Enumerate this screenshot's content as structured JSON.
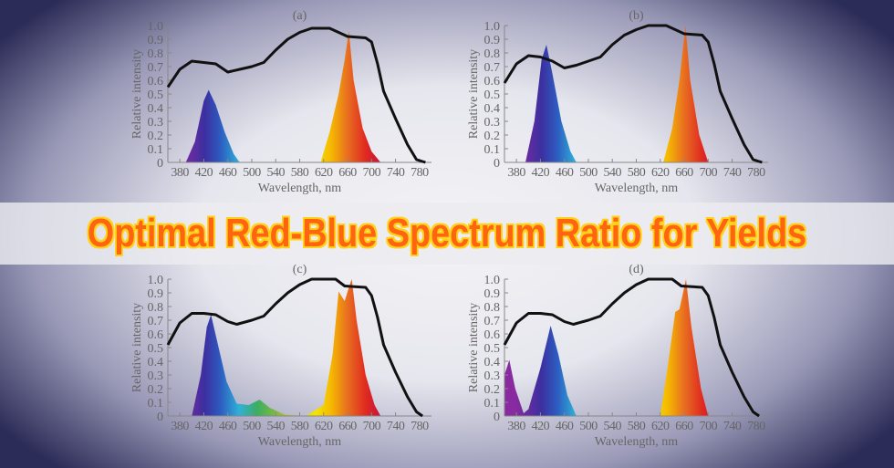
{
  "title": "Optimal Red-Blue Spectrum Ratio for Yields",
  "colors": {
    "title_fill": "#ff6410",
    "title_outline": "#ffd21a",
    "curve": "#111111"
  },
  "chart_data": [
    {
      "type": "area",
      "title": "(a)",
      "xlabel": "Wavelength, nm",
      "ylabel": "Relative intensity",
      "xlim": [
        360,
        800
      ],
      "ylim": [
        0,
        1.0
      ],
      "xticks": [
        380,
        420,
        460,
        500,
        540,
        580,
        620,
        660,
        700,
        740,
        780
      ],
      "yticks": [
        "0",
        "0.1",
        "0.2",
        "0.3",
        "0.4",
        "0.5",
        "0.6",
        "0.7",
        "0.8",
        "0.9",
        "1.0"
      ],
      "curve": [
        [
          360,
          0.55
        ],
        [
          380,
          0.68
        ],
        [
          400,
          0.74
        ],
        [
          420,
          0.73
        ],
        [
          440,
          0.72
        ],
        [
          460,
          0.66
        ],
        [
          480,
          0.68
        ],
        [
          500,
          0.7
        ],
        [
          520,
          0.73
        ],
        [
          540,
          0.82
        ],
        [
          560,
          0.9
        ],
        [
          580,
          0.95
        ],
        [
          600,
          0.98
        ],
        [
          630,
          0.98
        ],
        [
          645,
          0.95
        ],
        [
          660,
          0.92
        ],
        [
          690,
          0.91
        ],
        [
          700,
          0.88
        ],
        [
          710,
          0.72
        ],
        [
          720,
          0.52
        ],
        [
          740,
          0.32
        ],
        [
          760,
          0.13
        ],
        [
          775,
          0.02
        ],
        [
          790,
          0
        ]
      ],
      "spectrum": [
        [
          390,
          0
        ],
        [
          405,
          0.15
        ],
        [
          420,
          0.45
        ],
        [
          428,
          0.53
        ],
        [
          440,
          0.42
        ],
        [
          455,
          0.22
        ],
        [
          470,
          0.06
        ],
        [
          480,
          0
        ],
        [
          615,
          0
        ],
        [
          630,
          0.22
        ],
        [
          645,
          0.5
        ],
        [
          655,
          0.75
        ],
        [
          662,
          0.96
        ],
        [
          670,
          0.6
        ],
        [
          685,
          0.25
        ],
        [
          700,
          0.08
        ],
        [
          715,
          0
        ]
      ]
    },
    {
      "type": "area",
      "title": "(b)",
      "xlabel": "Wavelength, nm",
      "ylabel": "Relative intensity",
      "xlim": [
        360,
        800
      ],
      "ylim": [
        0,
        1.0
      ],
      "xticks": [
        380,
        420,
        460,
        500,
        540,
        580,
        620,
        660,
        700,
        740,
        780
      ],
      "yticks": [
        "0",
        "0.1",
        "0.2",
        "0.3",
        "0.4",
        "0.5",
        "0.6",
        "0.7",
        "0.8",
        "0.9",
        "1.0"
      ],
      "curve": [
        [
          360,
          0.58
        ],
        [
          380,
          0.72
        ],
        [
          400,
          0.78
        ],
        [
          420,
          0.77
        ],
        [
          440,
          0.74
        ],
        [
          460,
          0.69
        ],
        [
          480,
          0.71
        ],
        [
          500,
          0.74
        ],
        [
          520,
          0.77
        ],
        [
          540,
          0.86
        ],
        [
          560,
          0.93
        ],
        [
          580,
          0.97
        ],
        [
          600,
          1.0
        ],
        [
          630,
          1.0
        ],
        [
          645,
          0.97
        ],
        [
          660,
          0.94
        ],
        [
          690,
          0.93
        ],
        [
          700,
          0.88
        ],
        [
          710,
          0.72
        ],
        [
          720,
          0.52
        ],
        [
          740,
          0.32
        ],
        [
          760,
          0.13
        ],
        [
          775,
          0.02
        ],
        [
          790,
          0
        ]
      ],
      "spectrum": [
        [
          395,
          0
        ],
        [
          410,
          0.3
        ],
        [
          422,
          0.75
        ],
        [
          430,
          0.86
        ],
        [
          440,
          0.65
        ],
        [
          455,
          0.3
        ],
        [
          470,
          0.08
        ],
        [
          480,
          0
        ],
        [
          625,
          0
        ],
        [
          640,
          0.25
        ],
        [
          652,
          0.6
        ],
        [
          662,
          1.0
        ],
        [
          670,
          0.6
        ],
        [
          685,
          0.2
        ],
        [
          700,
          0
        ]
      ]
    },
    {
      "type": "area",
      "title": "(c)",
      "xlabel": "Wavelength, nm",
      "ylabel": "Relative intensity",
      "xlim": [
        360,
        800
      ],
      "ylim": [
        0,
        1.0
      ],
      "xticks": [
        380,
        420,
        460,
        500,
        540,
        580,
        620,
        660,
        700,
        740,
        780
      ],
      "yticks": [
        "0",
        "0.1",
        "0.2",
        "0.3",
        "0.4",
        "0.5",
        "0.6",
        "0.7",
        "0.8",
        "0.9",
        "1.0"
      ],
      "curve": [
        [
          360,
          0.52
        ],
        [
          380,
          0.68
        ],
        [
          400,
          0.75
        ],
        [
          420,
          0.75
        ],
        [
          440,
          0.74
        ],
        [
          460,
          0.69
        ],
        [
          475,
          0.67
        ],
        [
          500,
          0.7
        ],
        [
          520,
          0.73
        ],
        [
          540,
          0.82
        ],
        [
          560,
          0.9
        ],
        [
          580,
          0.96
        ],
        [
          600,
          1.0
        ],
        [
          640,
          1.0
        ],
        [
          655,
          0.95
        ],
        [
          690,
          0.94
        ],
        [
          700,
          0.88
        ],
        [
          710,
          0.72
        ],
        [
          720,
          0.52
        ],
        [
          740,
          0.32
        ],
        [
          760,
          0.14
        ],
        [
          775,
          0.03
        ],
        [
          785,
          0
        ]
      ],
      "spectrum": [
        [
          400,
          0
        ],
        [
          415,
          0.3
        ],
        [
          425,
          0.65
        ],
        [
          432,
          0.74
        ],
        [
          442,
          0.55
        ],
        [
          458,
          0.25
        ],
        [
          475,
          0.09
        ],
        [
          495,
          0.08
        ],
        [
          513,
          0.12
        ],
        [
          530,
          0.06
        ],
        [
          555,
          0.01
        ],
        [
          590,
          0
        ],
        [
          620,
          0.08
        ],
        [
          635,
          0.45
        ],
        [
          645,
          0.91
        ],
        [
          655,
          0.84
        ],
        [
          663,
          0.95
        ],
        [
          667,
          1.0
        ],
        [
          675,
          0.7
        ],
        [
          690,
          0.3
        ],
        [
          705,
          0.08
        ],
        [
          715,
          0
        ]
      ]
    },
    {
      "type": "area",
      "title": "(d)",
      "xlabel": "Wavelength, nm",
      "ylabel": "Relative intensity",
      "xlim": [
        360,
        800
      ],
      "ylim": [
        0,
        1.0
      ],
      "xticks": [
        380,
        420,
        460,
        500,
        540,
        580,
        620,
        660,
        700,
        740,
        780
      ],
      "yticks": [
        "0",
        "0.1",
        "0.2",
        "0.3",
        "0.4",
        "0.5",
        "0.6",
        "0.7",
        "0.8",
        "0.9",
        "1.0"
      ],
      "curve": [
        [
          360,
          0.52
        ],
        [
          380,
          0.68
        ],
        [
          400,
          0.75
        ],
        [
          420,
          0.75
        ],
        [
          440,
          0.74
        ],
        [
          460,
          0.69
        ],
        [
          475,
          0.67
        ],
        [
          500,
          0.7
        ],
        [
          520,
          0.73
        ],
        [
          540,
          0.82
        ],
        [
          560,
          0.9
        ],
        [
          580,
          0.96
        ],
        [
          600,
          1.0
        ],
        [
          640,
          1.0
        ],
        [
          655,
          0.95
        ],
        [
          690,
          0.94
        ],
        [
          700,
          0.88
        ],
        [
          710,
          0.72
        ],
        [
          720,
          0.52
        ],
        [
          740,
          0.32
        ],
        [
          760,
          0.14
        ],
        [
          775,
          0.03
        ],
        [
          785,
          0
        ]
      ],
      "spectrum": [
        [
          360,
          0.3
        ],
        [
          368,
          0.41
        ],
        [
          378,
          0.2
        ],
        [
          392,
          0.02
        ],
        [
          400,
          0.05
        ],
        [
          420,
          0.35
        ],
        [
          437,
          0.66
        ],
        [
          450,
          0.45
        ],
        [
          465,
          0.15
        ],
        [
          480,
          0
        ],
        [
          620,
          0
        ],
        [
          632,
          0.35
        ],
        [
          645,
          0.76
        ],
        [
          652,
          0.78
        ],
        [
          663,
          1.0
        ],
        [
          672,
          0.65
        ],
        [
          688,
          0.2
        ],
        [
          700,
          0
        ]
      ]
    }
  ]
}
